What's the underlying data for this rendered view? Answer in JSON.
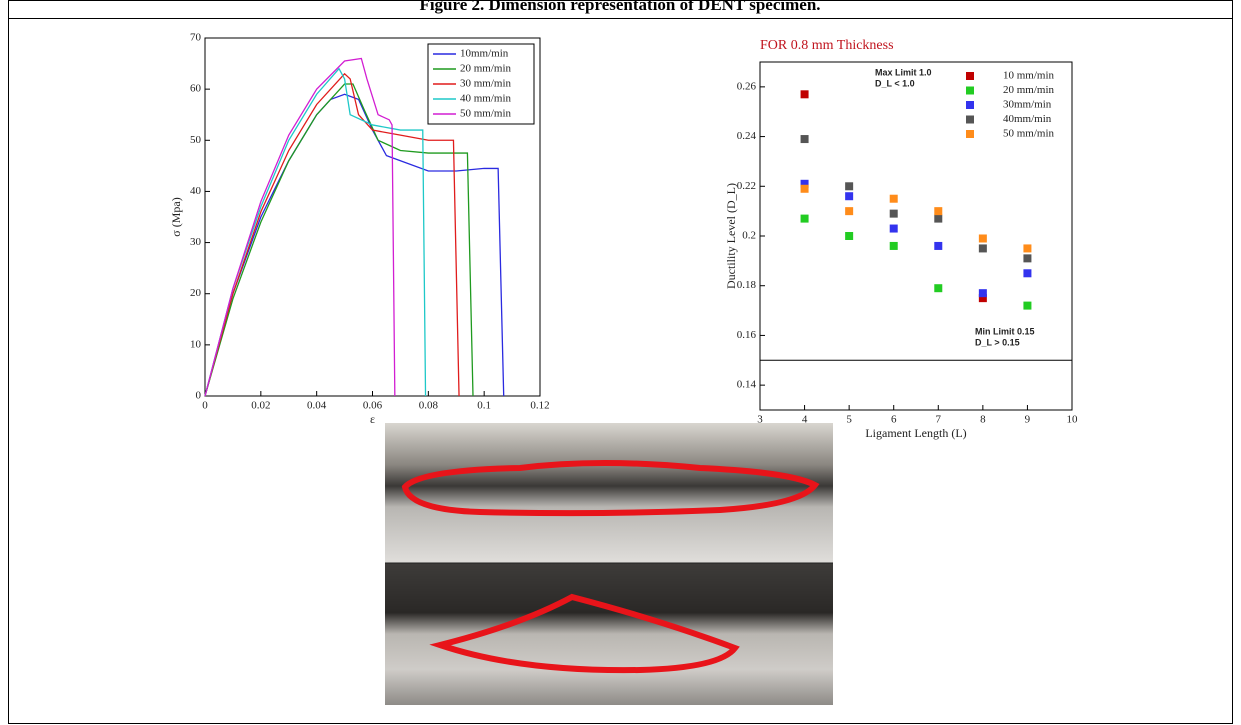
{
  "caption": "Figure 2. Dimension representation of DENT specimen.",
  "chart_data": [
    {
      "type": "line",
      "xlabel": "ε",
      "ylabel": "σ (Mpa)",
      "xlim": [
        0,
        0.12
      ],
      "ylim": [
        0,
        70
      ],
      "xticks": [
        0,
        0.02,
        0.04,
        0.06,
        0.08,
        0.1,
        0.12
      ],
      "yticks": [
        0,
        10,
        20,
        30,
        40,
        50,
        60,
        70
      ],
      "legend": "upper right",
      "series": [
        {
          "name": "10mm/min",
          "color": "#2a2ae0",
          "x": [
            0,
            0.01,
            0.02,
            0.03,
            0.04,
            0.045,
            0.05,
            0.055,
            0.06,
            0.065,
            0.07,
            0.08,
            0.09,
            0.1,
            0.105,
            0.107
          ],
          "values": [
            0,
            20,
            35,
            46,
            55,
            58,
            59,
            58,
            52,
            47,
            46,
            44,
            44,
            44.5,
            44.5,
            0
          ]
        },
        {
          "name": "20 mm/min",
          "color": "#1f9a1f",
          "x": [
            0,
            0.01,
            0.02,
            0.03,
            0.04,
            0.05,
            0.053,
            0.057,
            0.062,
            0.07,
            0.08,
            0.09,
            0.094,
            0.096
          ],
          "values": [
            0,
            19,
            34,
            46,
            55,
            61,
            61,
            56,
            50,
            48,
            47.5,
            47.5,
            47.5,
            0
          ]
        },
        {
          "name": "30 mm/min",
          "color": "#e01c1c",
          "x": [
            0,
            0.01,
            0.02,
            0.03,
            0.04,
            0.05,
            0.052,
            0.055,
            0.06,
            0.07,
            0.08,
            0.089,
            0.091
          ],
          "values": [
            0,
            20,
            36,
            48,
            57,
            63,
            62,
            55,
            52,
            51,
            50,
            50,
            0
          ]
        },
        {
          "name": "40 mm/min",
          "color": "#1ec8c8",
          "x": [
            0,
            0.01,
            0.02,
            0.03,
            0.04,
            0.048,
            0.05,
            0.052,
            0.06,
            0.07,
            0.078,
            0.079
          ],
          "values": [
            0,
            21,
            37,
            50,
            59,
            64,
            62,
            55,
            53,
            52,
            52,
            0
          ]
        },
        {
          "name": "50 mm/min",
          "color": "#d21ed2",
          "x": [
            0,
            0.01,
            0.02,
            0.03,
            0.04,
            0.05,
            0.056,
            0.058,
            0.062,
            0.066,
            0.067,
            0.068
          ],
          "values": [
            0,
            21,
            38,
            51,
            60,
            65.5,
            66,
            62,
            55,
            54,
            53,
            0
          ]
        }
      ]
    },
    {
      "type": "scatter",
      "title": "FOR 0.8 mm Thickness",
      "xlabel": "Ligament Length (L)",
      "ylabel": "Ductility Level (D_L)",
      "xlim": [
        3,
        10
      ],
      "ylim": [
        0.13,
        0.27
      ],
      "xticks": [
        3,
        4,
        5,
        6,
        7,
        8,
        9,
        10
      ],
      "yticks": [
        0.14,
        0.16,
        0.18,
        0.2,
        0.22,
        0.24,
        0.26
      ],
      "hline": 0.15,
      "annotations": [
        "Max Limit 1.0",
        "D_L < 1.0",
        "Min Limit  0.15",
        "D_L > 0.15"
      ],
      "legend": "upper right",
      "series": [
        {
          "name": "10 mm/min",
          "color": "#c00000",
          "x": [
            4,
            8
          ],
          "values": [
            0.257,
            0.175
          ]
        },
        {
          "name": "20 mm/min",
          "color": "#22cc22",
          "x": [
            4,
            5,
            6,
            7,
            9
          ],
          "values": [
            0.207,
            0.2,
            0.196,
            0.179,
            0.172
          ]
        },
        {
          "name": "30mm/min",
          "color": "#3333ee",
          "x": [
            4,
            5,
            6,
            7,
            8,
            9
          ],
          "values": [
            0.221,
            0.216,
            0.203,
            0.196,
            0.177,
            0.185
          ]
        },
        {
          "name": "40mm/min",
          "color": "#555555",
          "x": [
            4,
            5,
            6,
            7,
            8,
            9
          ],
          "values": [
            0.239,
            0.22,
            0.209,
            0.207,
            0.195,
            0.191
          ]
        },
        {
          "name": "50 mm/min",
          "color": "#ff8c1a",
          "x": [
            4,
            5,
            6,
            7,
            8,
            9
          ],
          "values": [
            0.219,
            0.21,
            0.215,
            0.21,
            0.199,
            0.195
          ]
        }
      ]
    }
  ]
}
